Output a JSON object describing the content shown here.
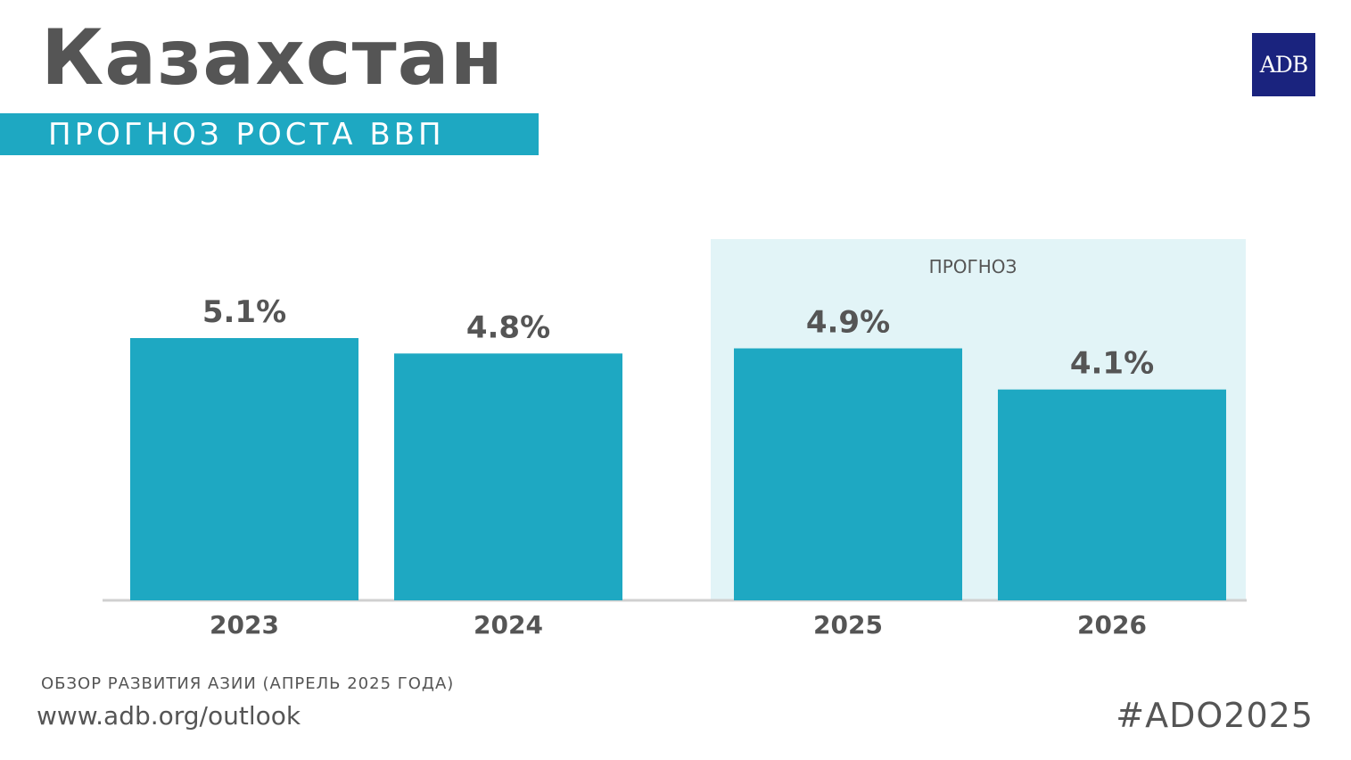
{
  "header": {
    "title": "Казахстан",
    "subtitle": "ПРОГНОЗ РОСТА ВВП",
    "logo_text": "ADB"
  },
  "footer": {
    "source": "ОБЗОР РАЗВИТИЯ АЗИИ (АПРЕЛЬ 2025 ГОДА)",
    "url": "www.adb.org/outlook",
    "hashtag": "#ADO2025"
  },
  "colors": {
    "bar": "#1ea8c2",
    "forecast_band": "#e2f4f7",
    "text": "#555555",
    "logo_bg": "#1a237e"
  },
  "chart_data": {
    "type": "bar",
    "categories": [
      "2023",
      "2024",
      "2025",
      "2026"
    ],
    "values": [
      5.1,
      4.8,
      4.9,
      4.1
    ],
    "value_labels": [
      "5.1%",
      "4.8%",
      "4.9%",
      "4.1%"
    ],
    "unit": "%",
    "forecast_label": "ПРОГНОЗ",
    "forecast_categories": [
      "2025",
      "2026"
    ],
    "ylim": [
      0,
      5.1
    ],
    "grid": false,
    "legend": "none"
  }
}
